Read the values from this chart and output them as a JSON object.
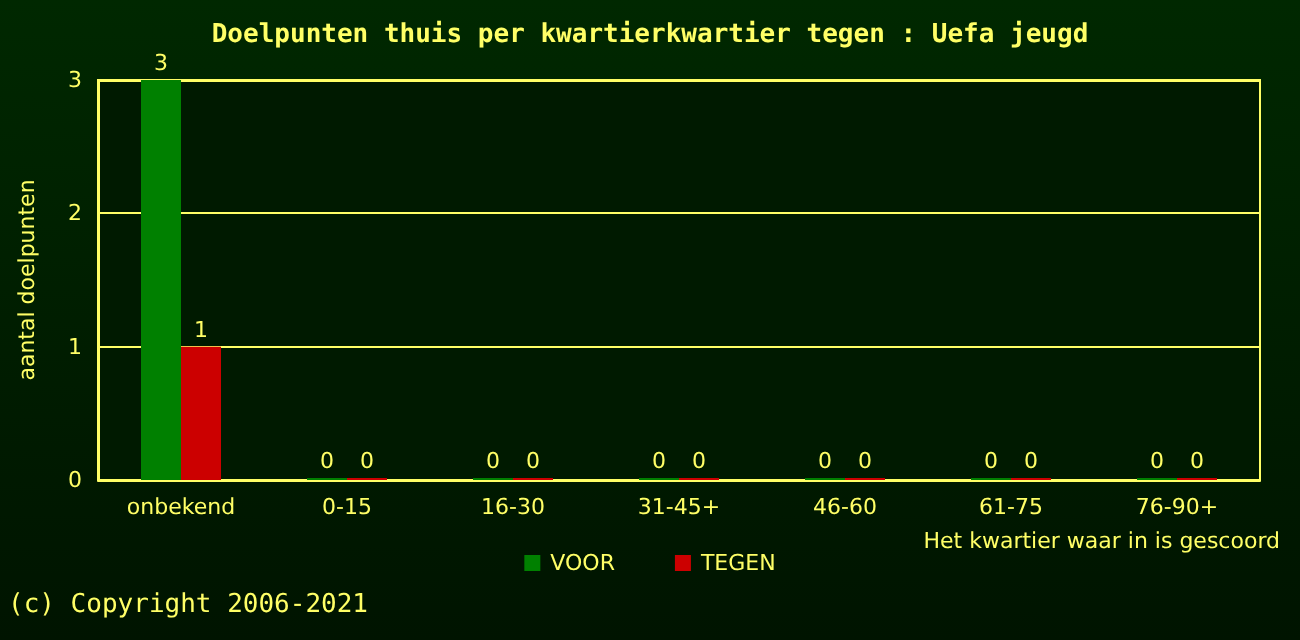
{
  "chart_data": {
    "type": "bar",
    "title": "Doelpunten thuis per kwartierkwartier tegen : Uefa jeugd",
    "xlabel": "Het kwartier waar in is gescoord",
    "ylabel": "aantal doelpunten",
    "categories": [
      "onbekend",
      "0-15",
      "16-30",
      "31-45+",
      "46-60",
      "61-75",
      "76-90+"
    ],
    "series": [
      {
        "name": "VOOR",
        "color": "#008000",
        "values": [
          3,
          0,
          0,
          0,
          0,
          0,
          0
        ]
      },
      {
        "name": "TEGEN",
        "color": "#cc0000",
        "values": [
          1,
          0,
          0,
          0,
          0,
          0,
          0
        ]
      }
    ],
    "ylim": [
      0,
      3
    ],
    "yticks": [
      0,
      1,
      2,
      3
    ],
    "grid": "y",
    "legend": "bottom",
    "data_labels": true,
    "annotations": [
      "(c) Copyright 2006-2021"
    ]
  }
}
